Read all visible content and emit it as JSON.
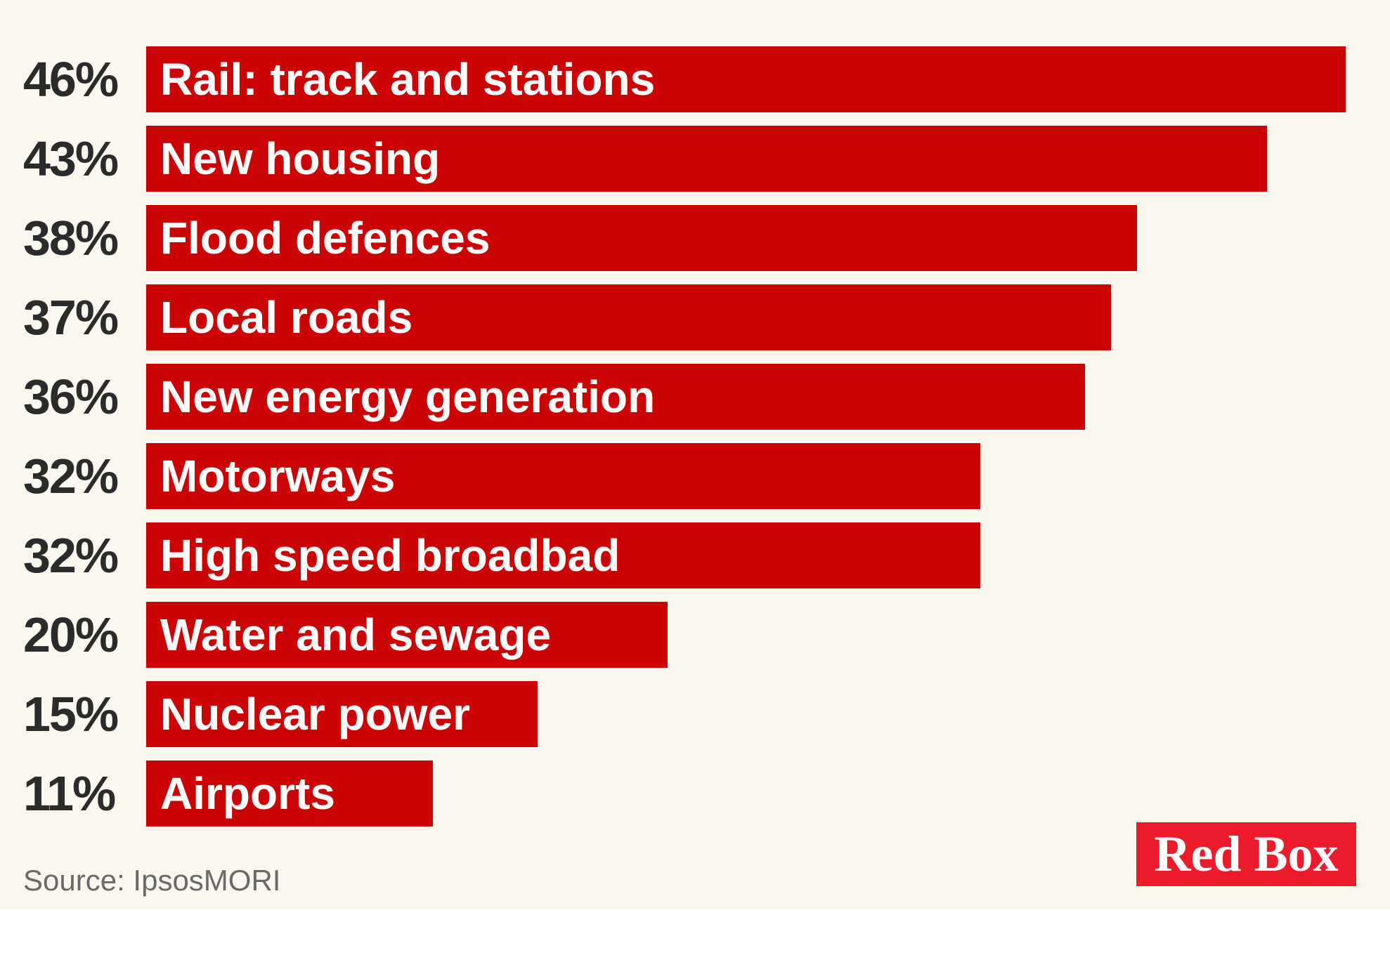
{
  "chart_data": {
    "type": "bar",
    "orientation": "horizontal",
    "title": "",
    "xlabel": "",
    "ylabel": "",
    "unit": "%",
    "xlim": [
      0,
      46
    ],
    "grid": false,
    "legend": null,
    "categories": [
      "Rail: track and stations",
      "New housing",
      "Flood defences",
      "Local roads",
      "New energy generation",
      "Motorways",
      "High speed broadbad",
      "Water and sewage",
      "Nuclear power",
      "Airports"
    ],
    "values": [
      46,
      43,
      38,
      37,
      36,
      32,
      32,
      20,
      15,
      11
    ],
    "value_labels": [
      "46%",
      "43%",
      "38%",
      "37%",
      "36%",
      "32%",
      "32%",
      "20%",
      "15%",
      "11%"
    ]
  },
  "source": {
    "text": "Source: IpsosMORI"
  },
  "logo": {
    "text": "Red Box"
  },
  "colors": {
    "background": "#faf7ee",
    "bar": "#cb0406",
    "bar_label_text": "#ffffff",
    "value_label_text": "#2b2b2b",
    "source_text": "#696969",
    "logo_background": "#ec1b2b",
    "logo_text": "#ffffff"
  }
}
